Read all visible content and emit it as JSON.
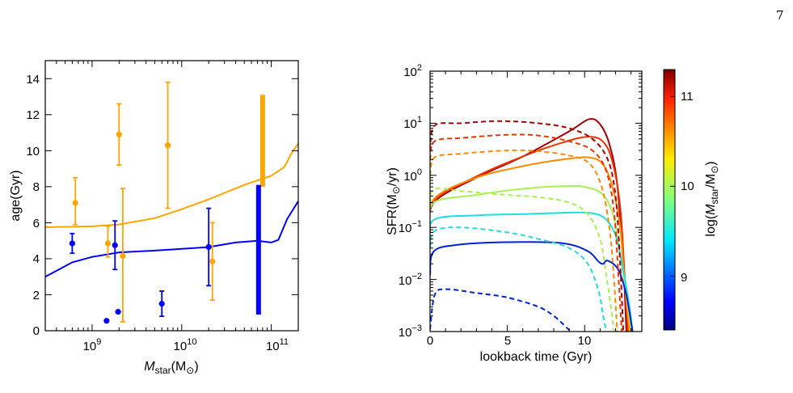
{
  "page": {
    "page_number": "7"
  },
  "chart_data": [
    {
      "type": "scatter",
      "xlabel": "M_star(M_⊙)",
      "ylabel": "age(Gyr)",
      "x_scale": "log",
      "xlim": [
        300000000,
        200000000000
      ],
      "ylim": [
        0,
        15
      ],
      "x_tick_labels": [
        "10^9",
        "10^10",
        "10^11"
      ],
      "y_tick_labels": [
        "0",
        "2",
        "4",
        "6",
        "8",
        "10",
        "12",
        "14"
      ],
      "colors": {
        "orange": "#ffa500",
        "blue": "#0000ff"
      },
      "series": [
        {
          "color": "orange",
          "kind": "line",
          "x": [
            300000000,
            1000000000,
            2000000000,
            5000000000,
            10000000000,
            20000000000,
            50000000000,
            100000000000,
            140000000000,
            170000000000,
            200000000000
          ],
          "y": [
            5.75,
            5.8,
            5.9,
            6.25,
            6.75,
            7.3,
            8.1,
            8.6,
            9.1,
            9.9,
            10.4
          ]
        },
        {
          "color": "blue",
          "kind": "line",
          "x": [
            300000000,
            600000000,
            1000000000,
            2000000000,
            5000000000,
            10000000000,
            20000000000,
            40000000000,
            70000000000,
            100000000000,
            120000000000,
            150000000000,
            200000000000
          ],
          "y": [
            3.0,
            3.8,
            4.1,
            4.35,
            4.45,
            4.55,
            4.65,
            4.9,
            5.0,
            4.9,
            5.05,
            6.2,
            7.2
          ]
        },
        {
          "color": "orange",
          "kind": "errorbar",
          "points": [
            {
              "x": 650000000,
              "y": 7.1,
              "ylow": 5.9,
              "yhigh": 8.5
            },
            {
              "x": 1500000000,
              "y": 4.85,
              "ylow": 4.1,
              "yhigh": 5.8
            },
            {
              "x": 2000000000,
              "y": 10.9,
              "ylow": 9.2,
              "yhigh": 12.6
            },
            {
              "x": 2200000000,
              "y": 4.15,
              "ylow": 0.5,
              "yhigh": 7.9
            },
            {
              "x": 7000000000,
              "y": 10.3,
              "ylow": 6.8,
              "yhigh": 13.8
            },
            {
              "x": 22000000000,
              "y": 3.85,
              "ylow": 1.7,
              "yhigh": 6.0
            }
          ]
        },
        {
          "color": "orange",
          "kind": "range",
          "points": [
            {
              "x": 80000000000,
              "ylow": 8.0,
              "yhigh": 13.1
            }
          ]
        },
        {
          "color": "blue",
          "kind": "errorbar",
          "points": [
            {
              "x": 600000000,
              "y": 4.85,
              "ylow": 4.3,
              "yhigh": 5.4
            },
            {
              "x": 1450000000,
              "y": 0.55
            },
            {
              "x": 1800000000,
              "y": 4.75,
              "ylow": 3.4,
              "yhigh": 6.1
            },
            {
              "x": 1950000000,
              "y": 1.05
            },
            {
              "x": 6000000000,
              "y": 1.5,
              "ylow": 0.8,
              "yhigh": 2.2
            },
            {
              "x": 20000000000,
              "y": 4.65,
              "ylow": 2.5,
              "yhigh": 6.8
            }
          ]
        },
        {
          "color": "blue",
          "kind": "range",
          "points": [
            {
              "x": 72000000000,
              "ylow": 0.9,
              "yhigh": 8.1
            }
          ]
        }
      ]
    },
    {
      "type": "line",
      "xlabel": "lookback time (Gyr)",
      "ylabel": "SFR(M_⊙/yr)",
      "y_scale": "log",
      "xlim": [
        0,
        13.7
      ],
      "ylim": [
        0.001,
        100
      ],
      "x_tick_labels": [
        "0",
        "5",
        "10"
      ],
      "y_tick_labels": [
        "10^-3",
        "10^-2",
        "10^-1",
        "10^0",
        "10^1",
        "10^2"
      ],
      "series": [
        {
          "color": "#a80000",
          "style": "solid",
          "x": [
            0,
            0.25,
            3,
            6,
            9,
            10.3,
            11,
            11.6,
            12.1,
            12.5,
            12.7
          ],
          "y": [
            0.08,
            0.3,
            0.9,
            2.3,
            7,
            12,
            9.5,
            4,
            0.7,
            0.02,
            0.001
          ]
        },
        {
          "color": "#ee3300",
          "style": "solid",
          "x": [
            0,
            0.25,
            3,
            6,
            8.5,
            10.2,
            11.2,
            11.8,
            12.3,
            12.6,
            12.8
          ],
          "y": [
            0.08,
            0.32,
            0.95,
            2.3,
            4.2,
            5.5,
            4.4,
            1.8,
            0.25,
            0.01,
            0.001
          ]
        },
        {
          "color": "#ff8a00",
          "style": "solid",
          "x": [
            0,
            0.25,
            3,
            6,
            8.5,
            10.3,
            11.2,
            11.8,
            12.3,
            12.6,
            12.9
          ],
          "y": [
            0.08,
            0.35,
            0.9,
            1.5,
            2.0,
            2.2,
            1.6,
            0.6,
            0.1,
            0.008,
            0.001
          ]
        },
        {
          "color": "#aaf050",
          "style": "solid",
          "x": [
            0,
            0.25,
            3,
            6,
            8.5,
            10,
            11.2,
            11.9,
            12.4,
            12.8,
            13.0
          ],
          "y": [
            0.1,
            0.3,
            0.42,
            0.55,
            0.62,
            0.6,
            0.42,
            0.15,
            0.02,
            0.003,
            0.001
          ]
        },
        {
          "color": "#22dddd",
          "style": "solid",
          "x": [
            0,
            0.25,
            3,
            6,
            8.5,
            10.3,
            11.3,
            12.0,
            12.5,
            12.9,
            13.1
          ],
          "y": [
            0.05,
            0.14,
            0.17,
            0.18,
            0.19,
            0.19,
            0.15,
            0.07,
            0.015,
            0.003,
            0.001
          ]
        },
        {
          "color": "#0022dd",
          "style": "solid",
          "x": [
            0,
            0.25,
            2,
            5,
            8.5,
            10.2,
            10.9,
            11.2,
            11.5,
            12.2,
            12.7,
            13.1
          ],
          "y": [
            0.012,
            0.035,
            0.047,
            0.052,
            0.05,
            0.035,
            0.022,
            0.02,
            0.023,
            0.015,
            0.005,
            0.001
          ]
        },
        {
          "color": "#a80000",
          "style": "dashed",
          "x": [
            0,
            0.3,
            2,
            4.5,
            7,
            9,
            10.5,
            11.5,
            12.0,
            12.3,
            12.5
          ],
          "y": [
            3.0,
            9.0,
            10.0,
            11.0,
            10.0,
            8.0,
            5.0,
            2.0,
            0.4,
            0.02,
            0.001
          ]
        },
        {
          "color": "#ee3300",
          "style": "dashed",
          "x": [
            0,
            0.3,
            2,
            5,
            7,
            9,
            10.5,
            11.4,
            11.9,
            12.2,
            12.4
          ],
          "y": [
            2.0,
            4.5,
            5.2,
            6.0,
            5.8,
            4.5,
            3.0,
            1.2,
            0.2,
            0.01,
            0.001
          ]
        },
        {
          "color": "#ff8a00",
          "style": "dashed",
          "x": [
            0,
            0.3,
            2,
            5,
            7,
            9,
            10.3,
            11.1,
            11.6,
            11.9,
            12.1
          ],
          "y": [
            1.0,
            2.2,
            2.6,
            3.0,
            2.9,
            2.4,
            1.7,
            0.6,
            0.1,
            0.01,
            0.001
          ]
        },
        {
          "color": "#aaf050",
          "style": "dashed",
          "x": [
            0,
            0.3,
            2,
            5,
            7,
            9,
            10.2,
            11.0,
            11.4,
            11.7,
            11.9
          ],
          "y": [
            0.3,
            0.55,
            0.5,
            0.42,
            0.38,
            0.3,
            0.18,
            0.06,
            0.012,
            0.003,
            0.001
          ]
        },
        {
          "color": "#22dddd",
          "style": "dashed",
          "x": [
            0,
            0.3,
            2,
            5,
            7,
            9,
            10.2,
            10.9,
            11.2,
            11.4
          ],
          "y": [
            0.04,
            0.085,
            0.1,
            0.08,
            0.06,
            0.04,
            0.02,
            0.006,
            0.002,
            0.001
          ]
        },
        {
          "color": "#0022dd",
          "style": "dashed",
          "x": [
            0,
            0.3,
            1,
            3,
            5,
            7,
            8,
            8.7,
            9.1
          ],
          "y": [
            0.0011,
            0.005,
            0.0065,
            0.0055,
            0.0045,
            0.003,
            0.002,
            0.0013,
            0.001
          ]
        }
      ]
    }
  ],
  "colorbar": {
    "label": "log(M_star/M_⊙)",
    "range": [
      8.4,
      11.3
    ],
    "tick_labels": [
      "9",
      "10",
      "11"
    ]
  }
}
